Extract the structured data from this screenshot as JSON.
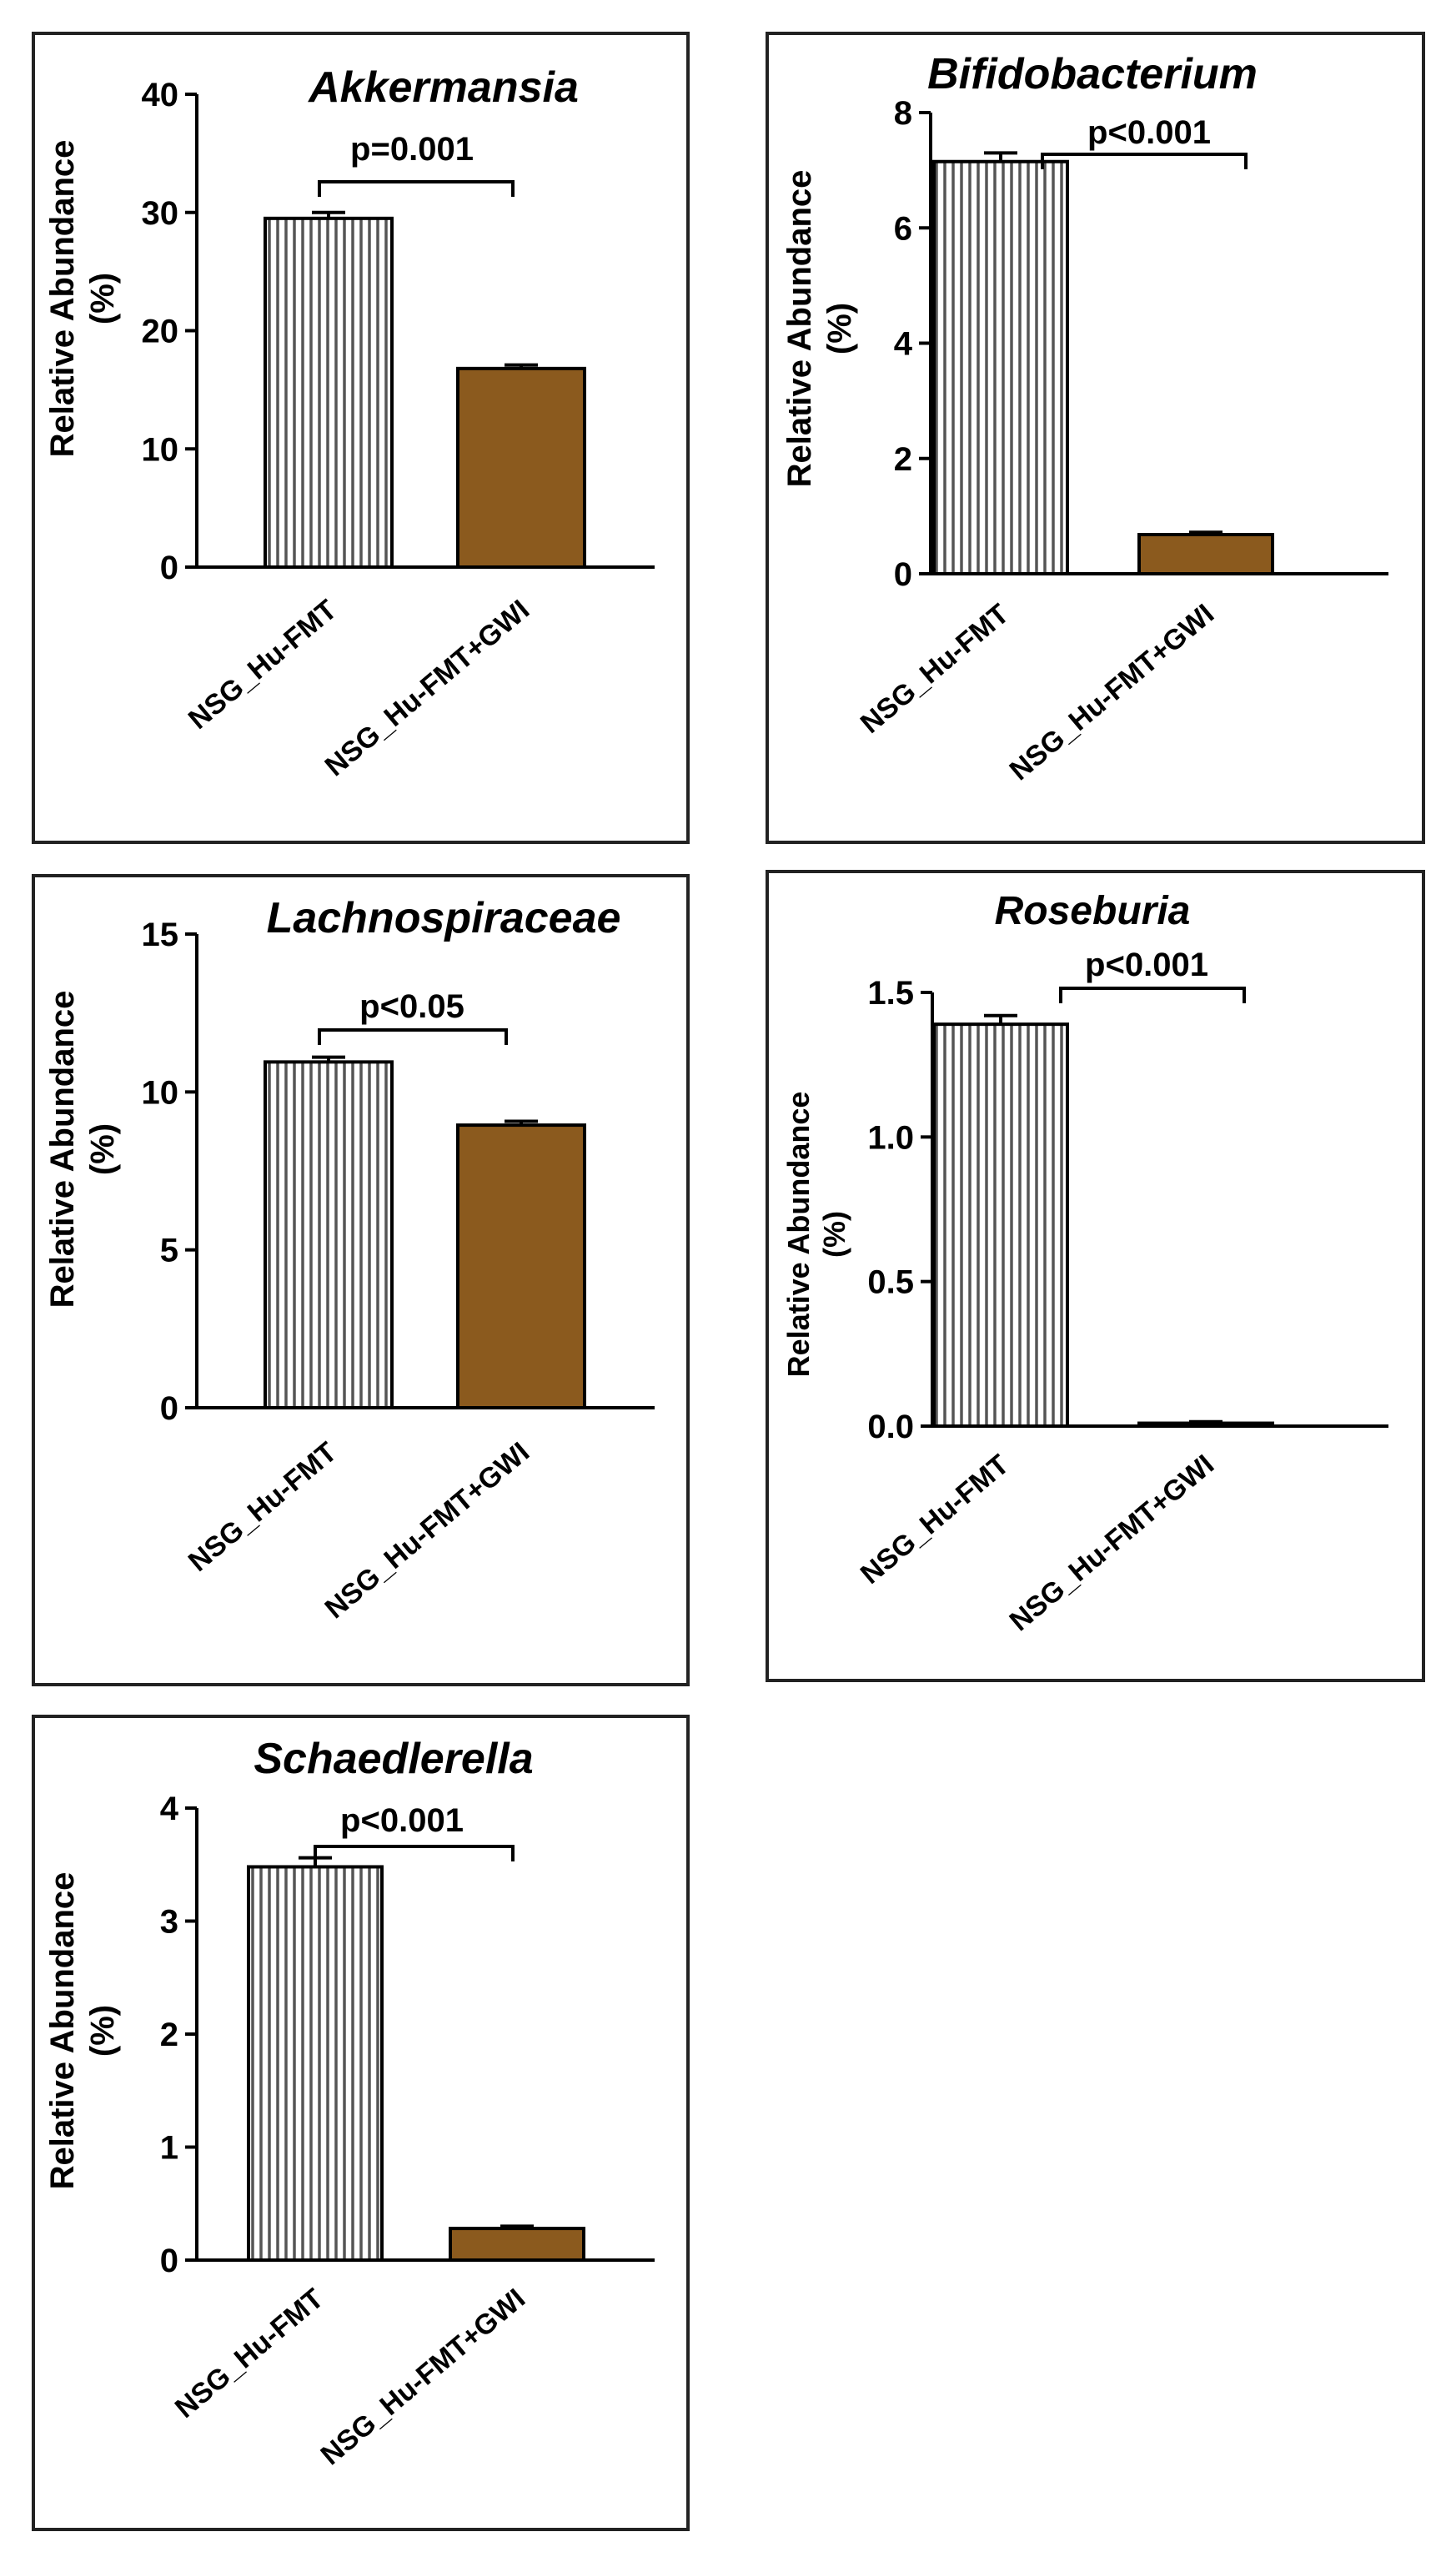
{
  "figure": {
    "ylabel_line1": "Relative Abundance",
    "ylabel_line2": "(%)",
    "colors": {
      "hatch_fill": "#ffffff",
      "hatch_line": "#555555",
      "gwi_fill": "#8b5a1e"
    }
  },
  "chart_data": [
    {
      "type": "bar",
      "title": "Akkermansia",
      "categories": [
        "NSG_Hu-FMT",
        "NSG_Hu-FMT+GWI"
      ],
      "values": [
        29.5,
        16.8
      ],
      "errors": [
        0.5,
        0.3
      ],
      "ylim": [
        0,
        40
      ],
      "yticks": [
        0,
        10,
        20,
        30,
        40
      ],
      "ytick_labels": [
        "0",
        "10",
        "20",
        "30",
        "40"
      ],
      "ylabel": "Relative Abundance (%)",
      "annotation": "p=0.001"
    },
    {
      "type": "bar",
      "title": "Bifidobacterium",
      "categories": [
        "NSG_Hu-FMT",
        "NSG_Hu-FMT+GWI"
      ],
      "values": [
        7.15,
        0.68
      ],
      "errors": [
        0.15,
        0.04
      ],
      "ylim": [
        0,
        8
      ],
      "yticks": [
        0,
        2,
        4,
        6,
        8
      ],
      "ytick_labels": [
        "0",
        "2",
        "4",
        "6",
        "8"
      ],
      "ylabel": "Relative Abundance (%)",
      "annotation": "p<0.001"
    },
    {
      "type": "bar",
      "title": "Lachnospiraceae",
      "categories": [
        "NSG_Hu-FMT",
        "NSG_Hu-FMT+GWI"
      ],
      "values": [
        10.95,
        8.95
      ],
      "errors": [
        0.15,
        0.12
      ],
      "ylim": [
        0,
        15
      ],
      "yticks": [
        0,
        5,
        10,
        15
      ],
      "ytick_labels": [
        "0",
        "5",
        "10",
        "15"
      ],
      "ylabel": "Relative Abundance (%)",
      "annotation": "p<0.05"
    },
    {
      "type": "bar",
      "title": "Roseburia",
      "categories": [
        "NSG_Hu-FMT",
        "NSG_Hu-FMT+GWI"
      ],
      "values": [
        1.39,
        0.01
      ],
      "errors": [
        0.03,
        0.005
      ],
      "ylim": [
        0,
        1.5
      ],
      "yticks": [
        0,
        0.5,
        1.0,
        1.5
      ],
      "ytick_labels": [
        "0.0",
        "0.5",
        "1.0",
        "1.5"
      ],
      "ylabel": "Relative Abundance (%)",
      "annotation": "p<0.001"
    },
    {
      "type": "bar",
      "title": "Schaedlerella",
      "categories": [
        "NSG_Hu-FMT",
        "NSG_Hu-FMT+GWI"
      ],
      "values": [
        3.48,
        0.28
      ],
      "errors": [
        0.08,
        0.02
      ],
      "ylim": [
        0,
        4
      ],
      "yticks": [
        0,
        1,
        2,
        3,
        4
      ],
      "ytick_labels": [
        "0",
        "1",
        "2",
        "3",
        "4"
      ],
      "ylabel": "Relative Abundance (%)",
      "annotation": "p<0.001"
    }
  ]
}
